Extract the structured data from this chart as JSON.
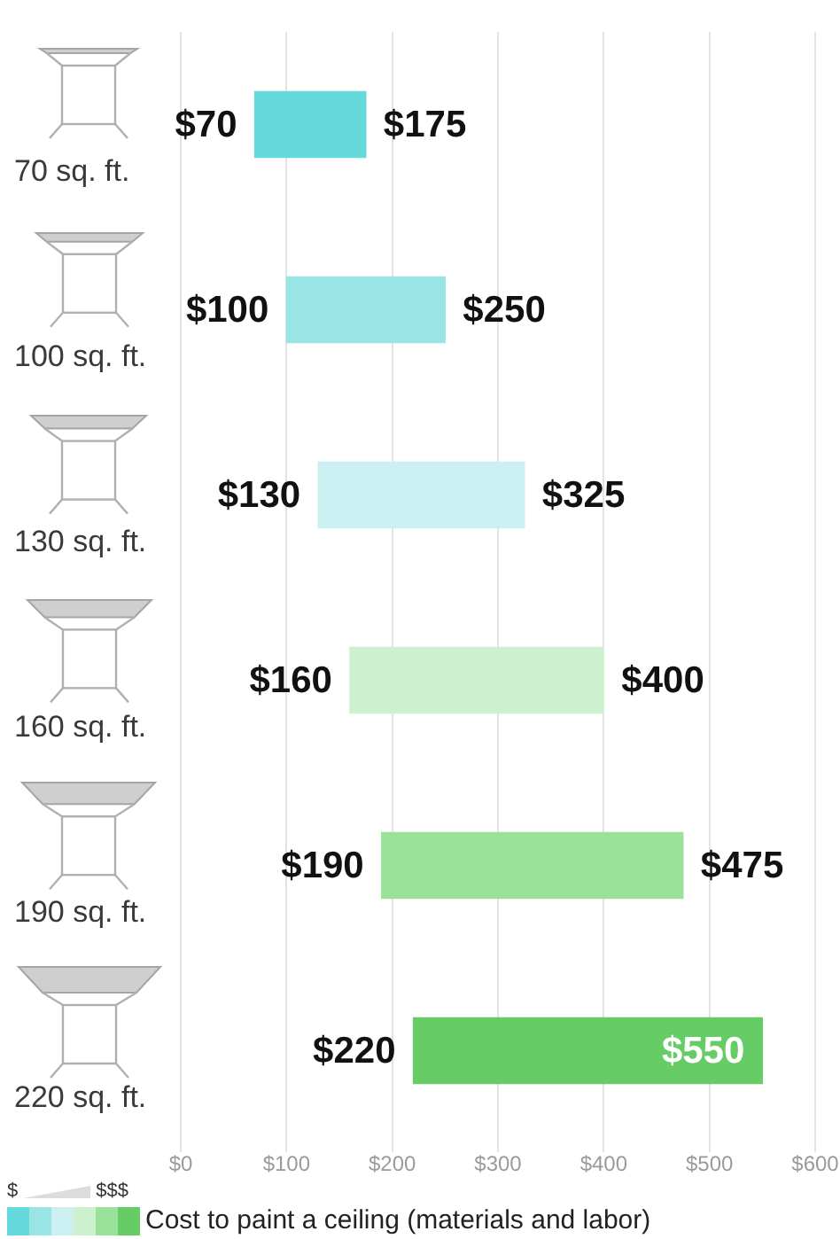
{
  "chart_data": {
    "type": "bar",
    "orientation": "horizontal",
    "categories": [
      "70 sq. ft.",
      "100 sq. ft.",
      "130 sq. ft.",
      "160 sq. ft.",
      "190 sq. ft.",
      "220 sq. ft."
    ],
    "series": [
      {
        "name": "Cost to paint a ceiling (materials and labor)",
        "colors": [
          "#66d9dc",
          "#99e5e6",
          "#ccf0f2",
          "#cdf0cf",
          "#9ae19a",
          "#66cc66"
        ],
        "base": [
          70,
          100,
          130,
          160,
          190,
          220
        ],
        "values": [
          105,
          150,
          195,
          240,
          285,
          330
        ]
      }
    ],
    "xlim": [
      0,
      600
    ],
    "xticks": [
      {
        "value": 0,
        "label": "$0"
      },
      {
        "value": 100,
        "label": "$100"
      },
      {
        "value": 200,
        "label": "$200"
      },
      {
        "value": 300,
        "label": "$300"
      },
      {
        "value": 400,
        "label": "$400"
      },
      {
        "value": 500,
        "label": "$500"
      },
      {
        "value": 600,
        "label": "$600"
      }
    ],
    "grid": "x",
    "legend": "bottom left",
    "annotations": [
      "$70",
      "$175",
      "$100",
      "$250",
      "$130",
      "$325",
      "$160",
      "$400",
      "$190",
      "$475",
      "$220",
      "$550",
      "$",
      "$$$"
    ]
  }
}
